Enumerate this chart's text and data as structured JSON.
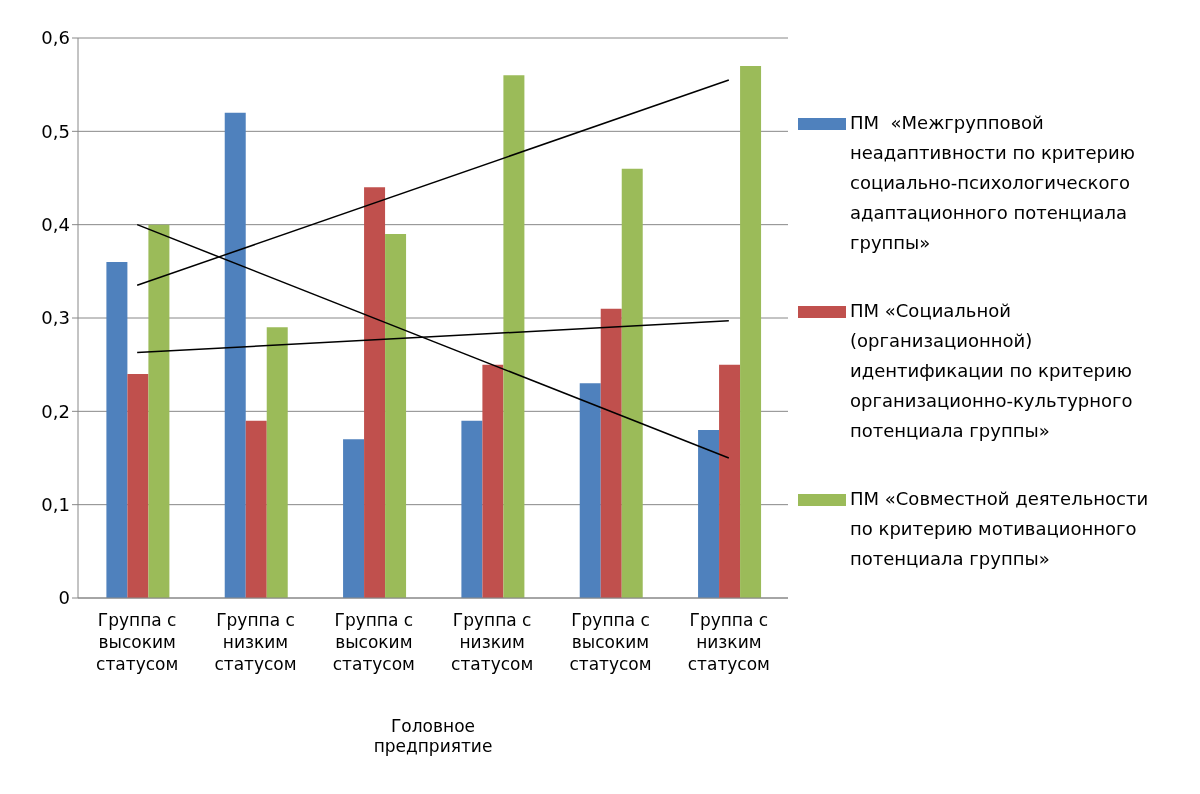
{
  "chart_data": {
    "type": "bar",
    "categories": [
      "Группа с высоким статусом",
      "Группа с низким статусом",
      "Группа с высоким статусом",
      "Группа с низким статусом",
      "Группа с высоким статусом",
      "Группа с низким статусом"
    ],
    "series": [
      {
        "name": "ПМ  «Межгрупповой неадаптивности по критерию социально-психологического адаптационного потенциала группы»",
        "color": "#4f81bd",
        "values": [
          0.36,
          0.52,
          0.17,
          0.19,
          0.23,
          0.18
        ]
      },
      {
        "name": "ПМ «Социальной (организационной) идентификации по критерию организационно-культурного потенциала группы»",
        "color": "#c0504d",
        "values": [
          0.24,
          0.19,
          0.44,
          0.25,
          0.31,
          0.25
        ]
      },
      {
        "name": "ПМ «Совместной деятельности по критерию мотивационного потенциала группы»",
        "color": "#9bbb59",
        "values": [
          0.4,
          0.29,
          0.39,
          0.56,
          0.46,
          0.57
        ]
      },
      {
        "type": "line",
        "color": "#000000",
        "values": [
          0.4,
          null,
          null,
          null,
          null,
          0.15
        ]
      },
      {
        "type": "line",
        "color": "#000000",
        "values": [
          0.335,
          null,
          null,
          null,
          null,
          0.555
        ]
      },
      {
        "type": "line",
        "color": "#000000",
        "values": [
          0.263,
          null,
          null,
          null,
          null,
          0.297
        ]
      }
    ],
    "ylim": [
      0,
      0.6
    ],
    "yticks": [
      0,
      {
        "value": 0.1,
        "label": "0,1"
      },
      {
        "value": 0.2,
        "label": "0,2"
      },
      {
        "value": 0.3,
        "label": "0,3"
      },
      {
        "value": 0.4,
        "label": "0,4"
      },
      {
        "value": 0.5,
        "label": "0,5"
      },
      {
        "value": 0.6,
        "label": "0,6"
      }
    ],
    "grid": "y",
    "legend": "right",
    "marker": "none",
    "annotations": [
      "Головное предприятие"
    ]
  }
}
